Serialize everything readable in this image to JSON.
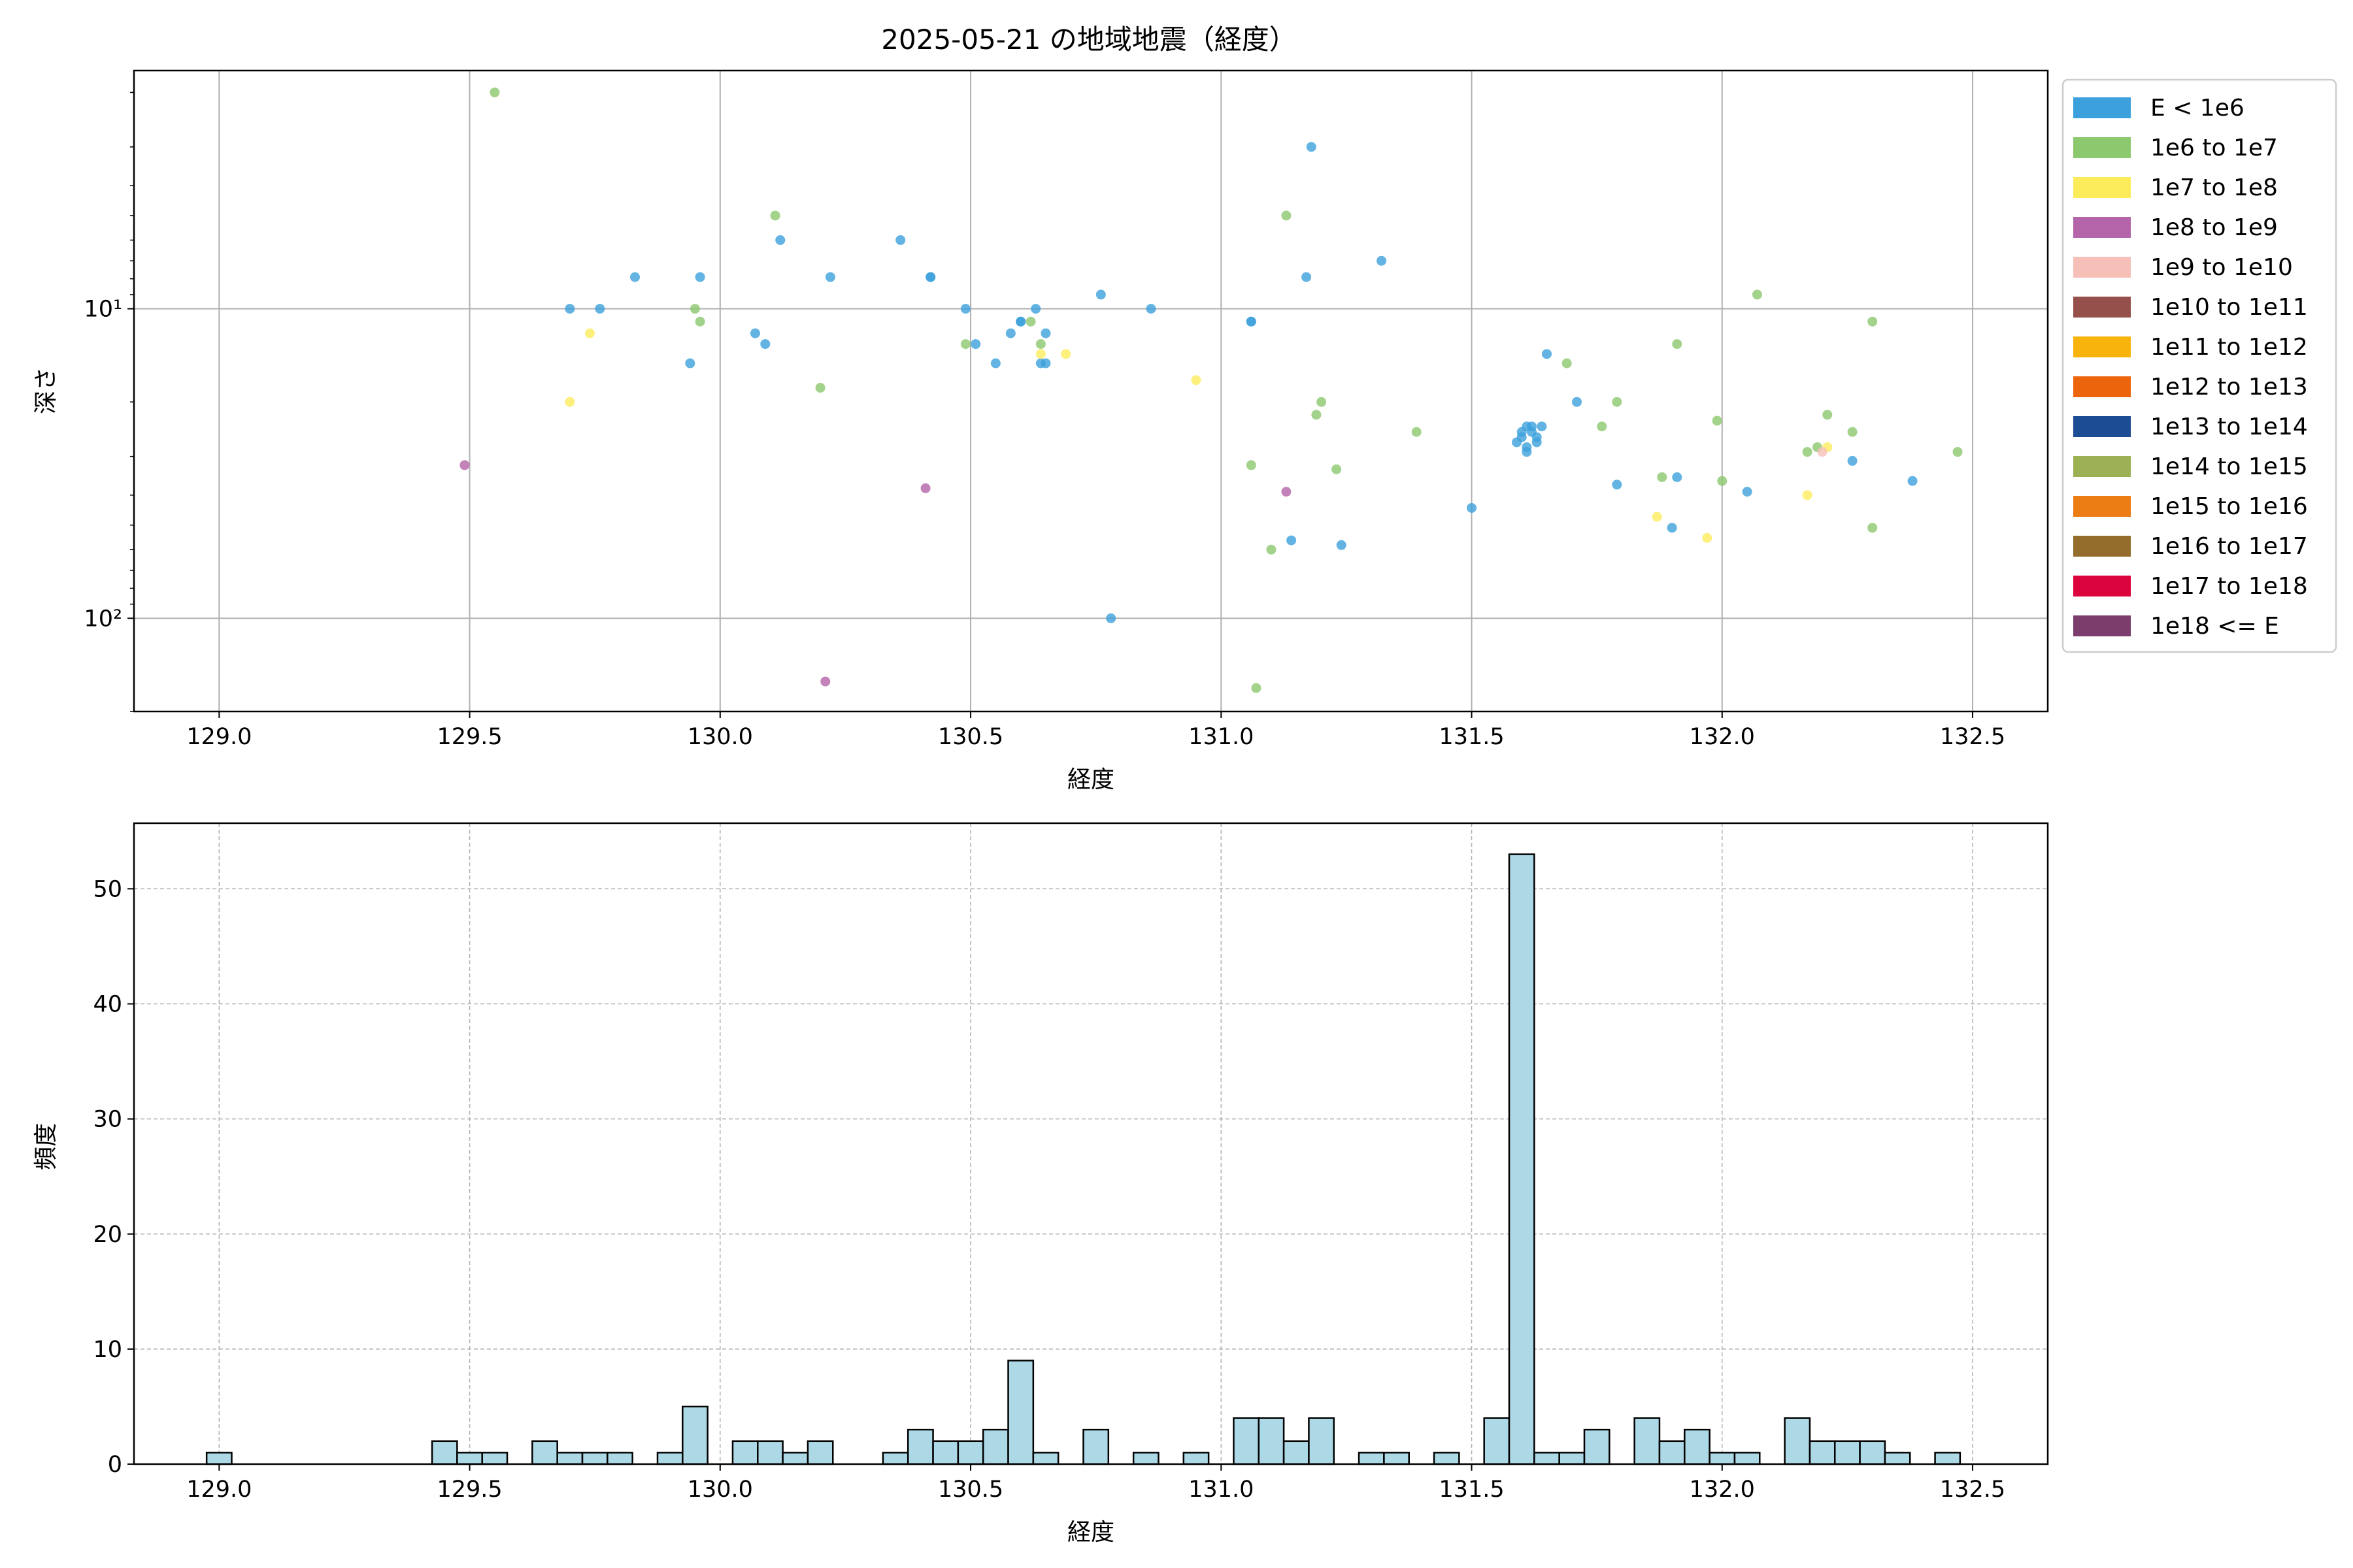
{
  "chart_data": [
    {
      "type": "scatter",
      "title": "2025-05-21 の地域地震（経度）",
      "xlabel": "経度",
      "ylabel": "深さ",
      "xlim": [
        128.83,
        132.65
      ],
      "ylim_depth": [
        1.7,
        200
      ],
      "yscale": "log",
      "y_inverted": true,
      "grid": true,
      "xticks": [
        "129.0",
        "129.5",
        "130.0",
        "130.5",
        "131.0",
        "131.5",
        "132.0",
        "132.5"
      ],
      "yticks": [
        {
          "value": 10,
          "label": "10¹"
        },
        {
          "value": 100,
          "label": "10²"
        }
      ],
      "legend_position": "outside-right",
      "legend": [
        {
          "label": "E < 1e6",
          "color": "#3ca0dc"
        },
        {
          "label": "1e6 to 1e7",
          "color": "#8cc86e"
        },
        {
          "label": "1e7 to 1e8",
          "color": "#fcec5c"
        },
        {
          "label": "1e8 to 1e9",
          "color": "#b464a8"
        },
        {
          "label": "1e9 to 1e10",
          "color": "#f6c0b8"
        },
        {
          "label": "1e10 to 1e11",
          "color": "#96504c"
        },
        {
          "label": "1e11 to 1e12",
          "color": "#f8b40c"
        },
        {
          "label": "1e12 to 1e13",
          "color": "#ec640c"
        },
        {
          "label": "1e13 to 1e14",
          "color": "#1c4c94"
        },
        {
          "label": "1e14 to 1e15",
          "color": "#9cb054"
        },
        {
          "label": "1e15 to 1e16",
          "color": "#ec7c14"
        },
        {
          "label": "1e16 to 1e17",
          "color": "#946c2c"
        },
        {
          "label": "1e17 to 1e18",
          "color": "#dc043c"
        },
        {
          "label": "1e18 <= E",
          "color": "#7c3c6c"
        }
      ],
      "series": [
        {
          "class": 0,
          "points": [
            [
              129.7,
              10
            ],
            [
              129.76,
              10
            ],
            [
              129.83,
              7.9
            ],
            [
              129.94,
              15
            ],
            [
              129.96,
              7.9
            ],
            [
              130.07,
              12
            ],
            [
              130.09,
              13
            ],
            [
              130.12,
              6
            ],
            [
              130.22,
              7.9
            ],
            [
              130.36,
              6
            ],
            [
              130.42,
              7.9
            ],
            [
              130.42,
              7.9
            ],
            [
              130.49,
              10
            ],
            [
              130.51,
              13
            ],
            [
              130.55,
              15
            ],
            [
              130.58,
              12
            ],
            [
              130.6,
              11
            ],
            [
              130.6,
              11
            ],
            [
              130.63,
              10
            ],
            [
              130.64,
              15
            ],
            [
              130.65,
              12
            ],
            [
              130.65,
              15
            ],
            [
              130.76,
              9
            ],
            [
              130.86,
              10
            ],
            [
              131.06,
              11
            ],
            [
              131.06,
              11
            ],
            [
              131.14,
              56
            ],
            [
              131.17,
              7.9
            ],
            [
              131.18,
              3
            ],
            [
              131.24,
              58
            ],
            [
              131.32,
              7
            ],
            [
              131.5,
              44
            ],
            [
              131.59,
              27
            ],
            [
              131.6,
              25
            ],
            [
              131.6,
              26
            ],
            [
              131.61,
              24
            ],
            [
              131.61,
              28
            ],
            [
              131.61,
              29
            ],
            [
              131.62,
              25
            ],
            [
              131.62,
              24
            ],
            [
              131.63,
              26
            ],
            [
              131.63,
              27
            ],
            [
              131.64,
              24
            ],
            [
              131.65,
              14
            ],
            [
              131.71,
              20
            ],
            [
              131.79,
              37
            ],
            [
              131.9,
              51
            ],
            [
              131.91,
              35
            ],
            [
              132.05,
              39
            ],
            [
              132.26,
              31
            ],
            [
              132.38,
              36
            ],
            [
              130.78,
              100
            ]
          ]
        },
        {
          "class": 1,
          "points": [
            [
              129.55,
              2
            ],
            [
              129.95,
              10
            ],
            [
              129.96,
              11
            ],
            [
              130.11,
              5
            ],
            [
              130.2,
              18
            ],
            [
              130.49,
              13
            ],
            [
              130.62,
              11
            ],
            [
              130.64,
              13
            ],
            [
              131.06,
              32
            ],
            [
              131.07,
              168
            ],
            [
              131.1,
              60
            ],
            [
              131.13,
              5
            ],
            [
              131.19,
              22
            ],
            [
              131.2,
              20
            ],
            [
              131.23,
              33
            ],
            [
              131.39,
              25
            ],
            [
              131.69,
              15
            ],
            [
              131.76,
              24
            ],
            [
              131.79,
              20
            ],
            [
              131.88,
              35
            ],
            [
              131.91,
              13
            ],
            [
              131.99,
              23
            ],
            [
              132.0,
              36
            ],
            [
              132.07,
              9
            ],
            [
              132.17,
              29
            ],
            [
              132.19,
              28
            ],
            [
              132.21,
              22
            ],
            [
              132.26,
              25
            ],
            [
              132.3,
              11
            ],
            [
              132.3,
              51
            ],
            [
              132.47,
              29
            ]
          ]
        },
        {
          "class": 2,
          "points": [
            [
              129.7,
              20
            ],
            [
              129.74,
              12
            ],
            [
              130.64,
              14
            ],
            [
              130.69,
              14
            ],
            [
              130.95,
              17
            ],
            [
              131.87,
              47
            ],
            [
              131.97,
              55
            ],
            [
              132.17,
              40
            ],
            [
              132.21,
              28
            ]
          ]
        },
        {
          "class": 3,
          "points": [
            [
              129.49,
              32
            ],
            [
              130.21,
              160
            ],
            [
              130.41,
              38
            ],
            [
              131.13,
              39
            ]
          ]
        },
        {
          "class": 4,
          "points": [
            [
              132.2,
              29
            ]
          ]
        }
      ]
    },
    {
      "type": "bar",
      "subtype": "histogram",
      "xlabel": "経度",
      "ylabel": "頻度",
      "xlim": [
        128.83,
        132.65
      ],
      "ylim": [
        0,
        55.7
      ],
      "grid": true,
      "grid_style": "dashed",
      "bar_color": "#add8e6",
      "edge_color": "#000000",
      "bin_start": 128.975,
      "bin_width": 0.05,
      "values": [
        1,
        0,
        0,
        0,
        0,
        0,
        0,
        0,
        0,
        2,
        1,
        1,
        0,
        2,
        1,
        1,
        1,
        0,
        1,
        5,
        0,
        2,
        2,
        1,
        2,
        0,
        0,
        1,
        3,
        2,
        2,
        3,
        9,
        1,
        0,
        3,
        0,
        1,
        0,
        1,
        0,
        4,
        4,
        2,
        4,
        0,
        1,
        1,
        0,
        1,
        0,
        4,
        53,
        1,
        1,
        3,
        0,
        4,
        2,
        3,
        1,
        1,
        0,
        4,
        2,
        2,
        2,
        1,
        0,
        1
      ],
      "xticks": [
        "129.0",
        "129.5",
        "130.0",
        "130.5",
        "131.0",
        "131.5",
        "132.0",
        "132.5"
      ],
      "yticks": [
        "0",
        "10",
        "20",
        "30",
        "40",
        "50"
      ]
    }
  ]
}
